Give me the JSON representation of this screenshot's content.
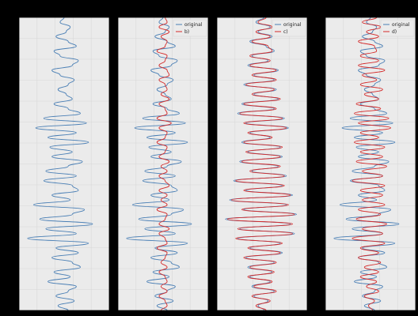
{
  "chart_data": {
    "type": "line",
    "orientation": "vertical-trace",
    "grid": true,
    "legend_placement": "top-right",
    "colors": {
      "original": "#4a7fb5",
      "reconstruction": "#d42a2a",
      "axes_bg": "#ebebeb",
      "grid": "#d8d8d8"
    },
    "panels": [
      {
        "label": "",
        "legend": [],
        "original": [
          0,
          -0.1,
          0.15,
          0.05,
          -0.2,
          0.1,
          0.3,
          -0.25,
          -0.1,
          0.35,
          0.2,
          -0.3,
          -0.1,
          0.25,
          0.1,
          -0.15,
          0.05,
          0.2,
          -0.25,
          0.1,
          0.4,
          -0.5,
          0.55,
          -0.7,
          0.3,
          -0.4,
          0.6,
          -0.35,
          0.2,
          -0.3,
          0.45,
          0.1,
          -0.45,
          0.3,
          -0.5,
          0.2,
          0.35,
          -0.3,
          0.15,
          -0.75,
          0.5,
          0.2,
          -0.6,
          0.7,
          -0.45,
          0.3,
          -0.9,
          0.6,
          -0.2,
          0.35,
          -0.3,
          0.2,
          0.4,
          -0.25,
          0.15,
          -0.4,
          0.3,
          0.1,
          -0.2,
          0.25,
          -0.15,
          0.1
        ]
      },
      {
        "label": "b)",
        "legend": [
          "original",
          "b)"
        ],
        "original": [
          0,
          -0.1,
          0.15,
          0.05,
          -0.2,
          0.1,
          0.3,
          -0.25,
          -0.1,
          0.35,
          0.2,
          -0.3,
          -0.1,
          0.25,
          0.1,
          -0.15,
          0.05,
          0.2,
          -0.25,
          0.1,
          0.4,
          -0.5,
          0.55,
          -0.7,
          0.3,
          -0.4,
          0.6,
          -0.35,
          0.2,
          -0.3,
          0.45,
          0.1,
          -0.45,
          0.3,
          -0.5,
          0.2,
          0.35,
          -0.3,
          0.15,
          -0.75,
          0.5,
          0.2,
          -0.6,
          0.7,
          -0.45,
          0.3,
          -0.9,
          0.6,
          -0.2,
          0.35,
          -0.3,
          0.2,
          0.4,
          -0.25,
          0.15,
          -0.4,
          0.3,
          0.1,
          -0.2,
          0.25,
          -0.15,
          0.1
        ],
        "reconstruction": [
          0.05,
          0.1,
          -0.1,
          0.15,
          -0.05,
          0.1,
          0.05,
          -0.15,
          0.1,
          0.05,
          -0.1,
          0.1,
          0.15,
          -0.1,
          0.05,
          0.1,
          -0.05,
          0.15,
          -0.1,
          0.05,
          0.1,
          -0.15,
          0.2,
          -0.1,
          0.1,
          0.05,
          -0.15,
          0.1,
          0.05,
          -0.1,
          0.15,
          -0.05,
          0.1,
          -0.1,
          0.05,
          0.15,
          -0.1,
          0.1,
          -0.05,
          0.1,
          -0.15,
          0.1,
          0.05,
          -0.1,
          0.15,
          -0.1,
          0.05,
          0.1,
          -0.15,
          0.1,
          0.05,
          -0.05,
          0.1,
          -0.1,
          0.05,
          0.1,
          -0.05,
          0.1,
          -0.1,
          0.05,
          0.1,
          -0.05
        ]
      },
      {
        "label": "c)",
        "legend": [
          "original",
          "c)"
        ],
        "original": [
          0.05,
          -0.15,
          0.2,
          -0.1,
          0.25,
          -0.3,
          0.1,
          0.3,
          -0.25,
          0.15,
          -0.35,
          0.4,
          -0.2,
          0.3,
          -0.45,
          0.35,
          -0.2,
          0.4,
          -0.5,
          0.3,
          -0.6,
          0.55,
          -0.4,
          0.65,
          -0.3,
          0.2,
          -0.5,
          0.45,
          -0.35,
          0.5,
          -0.55,
          0.4,
          -0.25,
          0.6,
          -0.7,
          0.5,
          -0.4,
          0.75,
          -0.8,
          0.6,
          -0.45,
          0.85,
          -0.9,
          0.7,
          -0.55,
          0.8,
          -0.6,
          0.45,
          -0.3,
          0.5,
          -0.4,
          0.3,
          -0.35,
          0.25,
          -0.3,
          0.2,
          -0.25,
          0.3,
          -0.2,
          0.15,
          -0.1,
          0.05
        ],
        "reconstruction": [
          0.1,
          -0.1,
          0.25,
          -0.15,
          0.2,
          -0.25,
          0.15,
          0.25,
          -0.3,
          0.2,
          -0.3,
          0.35,
          -0.25,
          0.35,
          -0.4,
          0.3,
          -0.25,
          0.45,
          -0.45,
          0.35,
          -0.55,
          0.5,
          -0.45,
          0.6,
          -0.35,
          0.25,
          -0.45,
          0.5,
          -0.4,
          0.45,
          -0.5,
          0.45,
          -0.3,
          0.55,
          -0.65,
          0.55,
          -0.45,
          0.7,
          -0.75,
          0.65,
          -0.5,
          0.8,
          -0.85,
          0.75,
          -0.6,
          0.75,
          -0.65,
          0.5,
          -0.35,
          0.45,
          -0.45,
          0.35,
          -0.3,
          0.3,
          -0.35,
          0.25,
          -0.2,
          0.35,
          -0.25,
          0.2,
          -0.15,
          0.1
        ]
      },
      {
        "label": "d)",
        "legend": [
          "original",
          "d)"
        ],
        "original": [
          0,
          -0.1,
          0.15,
          0.05,
          -0.2,
          0.1,
          0.3,
          -0.25,
          -0.1,
          0.35,
          0.2,
          -0.3,
          -0.1,
          0.25,
          0.1,
          -0.15,
          0.05,
          0.2,
          -0.25,
          0.1,
          0.4,
          -0.5,
          0.55,
          -0.7,
          0.3,
          -0.4,
          0.6,
          -0.35,
          0.2,
          -0.3,
          0.45,
          0.1,
          -0.45,
          0.3,
          -0.5,
          0.2,
          0.35,
          -0.3,
          0.15,
          -0.75,
          0.5,
          0.2,
          -0.6,
          0.7,
          -0.45,
          0.3,
          -0.9,
          0.6,
          -0.2,
          0.35,
          -0.3,
          0.2,
          0.4,
          -0.25,
          0.15,
          -0.4,
          0.3,
          0.1,
          -0.2,
          0.25,
          -0.15,
          0.1
        ],
        "reconstruction": [
          0.15,
          -0.2,
          0.25,
          -0.1,
          0.2,
          -0.3,
          0.1,
          0.15,
          -0.25,
          0.2,
          -0.3,
          0.35,
          -0.2,
          0.15,
          -0.25,
          0.3,
          -0.15,
          0.2,
          -0.35,
          0.25,
          -0.4,
          0.45,
          -0.3,
          0.5,
          -0.25,
          0.2,
          -0.4,
          0.35,
          -0.25,
          0.3,
          -0.35,
          0.4,
          -0.2,
          0.3,
          -0.45,
          0.35,
          -0.25,
          0.3,
          -0.2,
          0.35,
          -0.3,
          0.25,
          -0.35,
          0.4,
          -0.2,
          0.3,
          -0.45,
          0.35,
          -0.25,
          0.2,
          -0.3,
          0.25,
          -0.15,
          0.2,
          -0.25,
          0.15,
          -0.1,
          0.2,
          -0.15,
          0.1,
          -0.05,
          0.05
        ]
      }
    ]
  }
}
